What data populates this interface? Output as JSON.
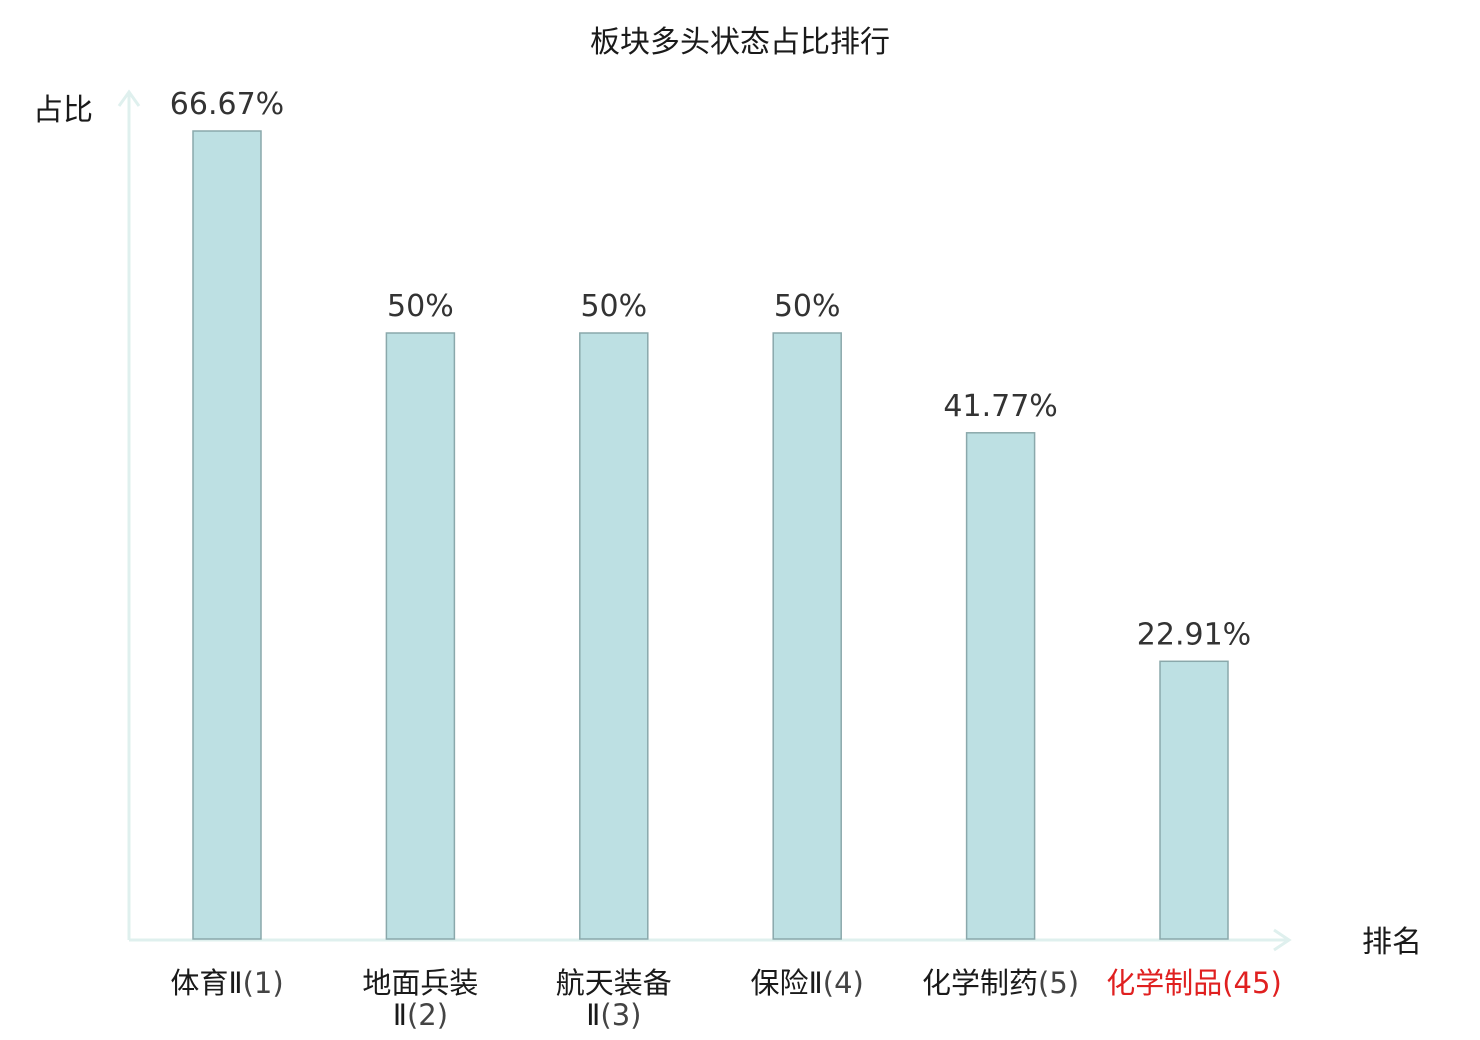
{
  "chart_data": {
    "type": "bar",
    "title": "板块多头状态占比排行",
    "xlabel": "排名",
    "ylabel": "占比",
    "ylim": [
      0,
      66.67
    ],
    "grid": false,
    "categories": [
      {
        "name_lines": [
          "体育Ⅱ"
        ],
        "rank": "(1)",
        "highlight": false
      },
      {
        "name_lines": [
          "地面兵装",
          "Ⅱ"
        ],
        "rank": "(2)",
        "highlight": false
      },
      {
        "name_lines": [
          "航天装备",
          "Ⅱ"
        ],
        "rank": "(3)",
        "highlight": false
      },
      {
        "name_lines": [
          "保险Ⅱ"
        ],
        "rank": "(4)",
        "highlight": false
      },
      {
        "name_lines": [
          "化学制药"
        ],
        "rank": "(5)",
        "highlight": false
      },
      {
        "name_lines": [
          "化学制品"
        ],
        "rank": "(45)",
        "highlight": true
      }
    ],
    "values": [
      66.67,
      50,
      50,
      50,
      41.77,
      22.91
    ],
    "value_labels": [
      "66.67%",
      "50%",
      "50%",
      "50%",
      "41.77%",
      "22.91%"
    ],
    "colors": {
      "bar_fill": "#bde0e3",
      "bar_stroke": "#8aa8ab",
      "axis": "#dff0ee",
      "highlight": "#e02020"
    }
  }
}
